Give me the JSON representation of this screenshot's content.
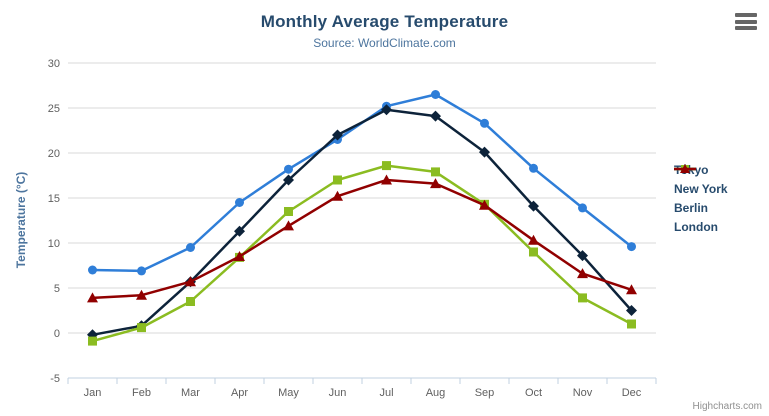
{
  "chart_data": {
    "type": "line",
    "title": "Monthly Average Temperature",
    "subtitle": "Source: WorldClimate.com",
    "xlabel": "",
    "ylabel": "Temperature (°C)",
    "ylim": [
      -5,
      30
    ],
    "y_ticks": [
      -5,
      0,
      5,
      10,
      15,
      20,
      25,
      30
    ],
    "grid": true,
    "legend_position": "right",
    "categories": [
      "Jan",
      "Feb",
      "Mar",
      "Apr",
      "May",
      "Jun",
      "Jul",
      "Aug",
      "Sep",
      "Oct",
      "Nov",
      "Dec"
    ],
    "series": [
      {
        "name": "Tokyo",
        "color": "#2f7ed8",
        "marker": "circle",
        "values": [
          7.0,
          6.9,
          9.5,
          14.5,
          18.2,
          21.5,
          25.2,
          26.5,
          23.3,
          18.3,
          13.9,
          9.6
        ]
      },
      {
        "name": "New York",
        "color": "#0d233a",
        "marker": "diamond",
        "values": [
          -0.2,
          0.8,
          5.7,
          11.3,
          17.0,
          22.0,
          24.8,
          24.1,
          20.1,
          14.1,
          8.6,
          2.5
        ]
      },
      {
        "name": "Berlin",
        "color": "#8bbc21",
        "marker": "square",
        "values": [
          -0.9,
          0.6,
          3.5,
          8.4,
          13.5,
          17.0,
          18.6,
          17.9,
          14.3,
          9.0,
          3.9,
          1.0
        ]
      },
      {
        "name": "London",
        "color": "#910000",
        "marker": "triangle",
        "values": [
          3.9,
          4.2,
          5.7,
          8.5,
          11.9,
          15.2,
          17.0,
          16.6,
          14.2,
          10.3,
          6.6,
          4.8
        ]
      }
    ]
  },
  "colors": {
    "grid_line": "#D8D8D8",
    "axis_line": "#C0D0E0",
    "axis_label": "#606060",
    "title": "#274b6d",
    "subtitle": "#4d759e",
    "legend_text": "#274b6d",
    "credit_text": "#909090",
    "menu_icon": "#666666"
  },
  "icons": {
    "context_menu": "hamburger-icon"
  },
  "credit": "Highcharts.com"
}
